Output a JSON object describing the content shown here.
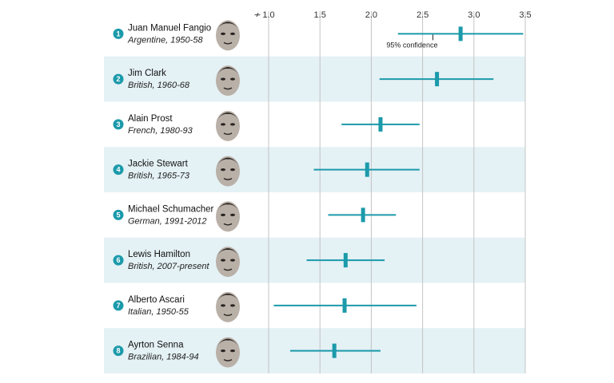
{
  "chart_data": {
    "type": "scatter",
    "xlim": [
      1.0,
      3.5
    ],
    "ticks": [
      "1.0",
      "1.5",
      "2.0",
      "2.5",
      "3.0",
      "3.5"
    ],
    "tick_values": [
      1.0,
      1.5,
      2.0,
      2.5,
      3.0,
      3.5
    ],
    "axis_break_symbol": "≁",
    "grid": true,
    "annotation": {
      "text": "95% confidence",
      "row": 0,
      "x": 2.6
    },
    "rows": [
      {
        "rank": "1",
        "name": "Juan Manuel Fangio",
        "detail": "Argentine, 1950-58",
        "value": 2.87,
        "low": 2.26,
        "high": 3.48
      },
      {
        "rank": "2",
        "name": "Jim Clark",
        "detail": "British, 1960-68",
        "value": 2.64,
        "low": 2.08,
        "high": 3.19
      },
      {
        "rank": "3",
        "name": "Alain Prost",
        "detail": "French, 1980-93",
        "value": 2.09,
        "low": 1.71,
        "high": 2.47
      },
      {
        "rank": "4",
        "name": "Jackie Stewart",
        "detail": "British, 1965-73",
        "value": 1.96,
        "low": 1.44,
        "high": 2.47
      },
      {
        "rank": "5",
        "name": "Michael Schumacher",
        "detail": "German, 1991-2012",
        "value": 1.92,
        "low": 1.58,
        "high": 2.24
      },
      {
        "rank": "6",
        "name": "Lewis Hamilton",
        "detail": "British, 2007-present",
        "value": 1.75,
        "low": 1.37,
        "high": 2.13
      },
      {
        "rank": "7",
        "name": "Alberto Ascari",
        "detail": "Italian, 1950-55",
        "value": 1.74,
        "low": 1.05,
        "high": 2.44
      },
      {
        "rank": "8",
        "name": "Ayrton Senna",
        "detail": "Brazilian, 1984-94",
        "value": 1.64,
        "low": 1.21,
        "high": 2.09
      }
    ]
  },
  "colors": {
    "accent": "#1b9aaa",
    "band": "#e4f1f5",
    "grid": "#c4c4c4",
    "text": "#111111",
    "face": "#b9b0a8",
    "face_dark": "#2a2522"
  },
  "icons": {
    "rank_badge": "numbered-circle-icon",
    "portrait": "driver-portrait-icon",
    "axis_break": "axis-break-icon"
  }
}
